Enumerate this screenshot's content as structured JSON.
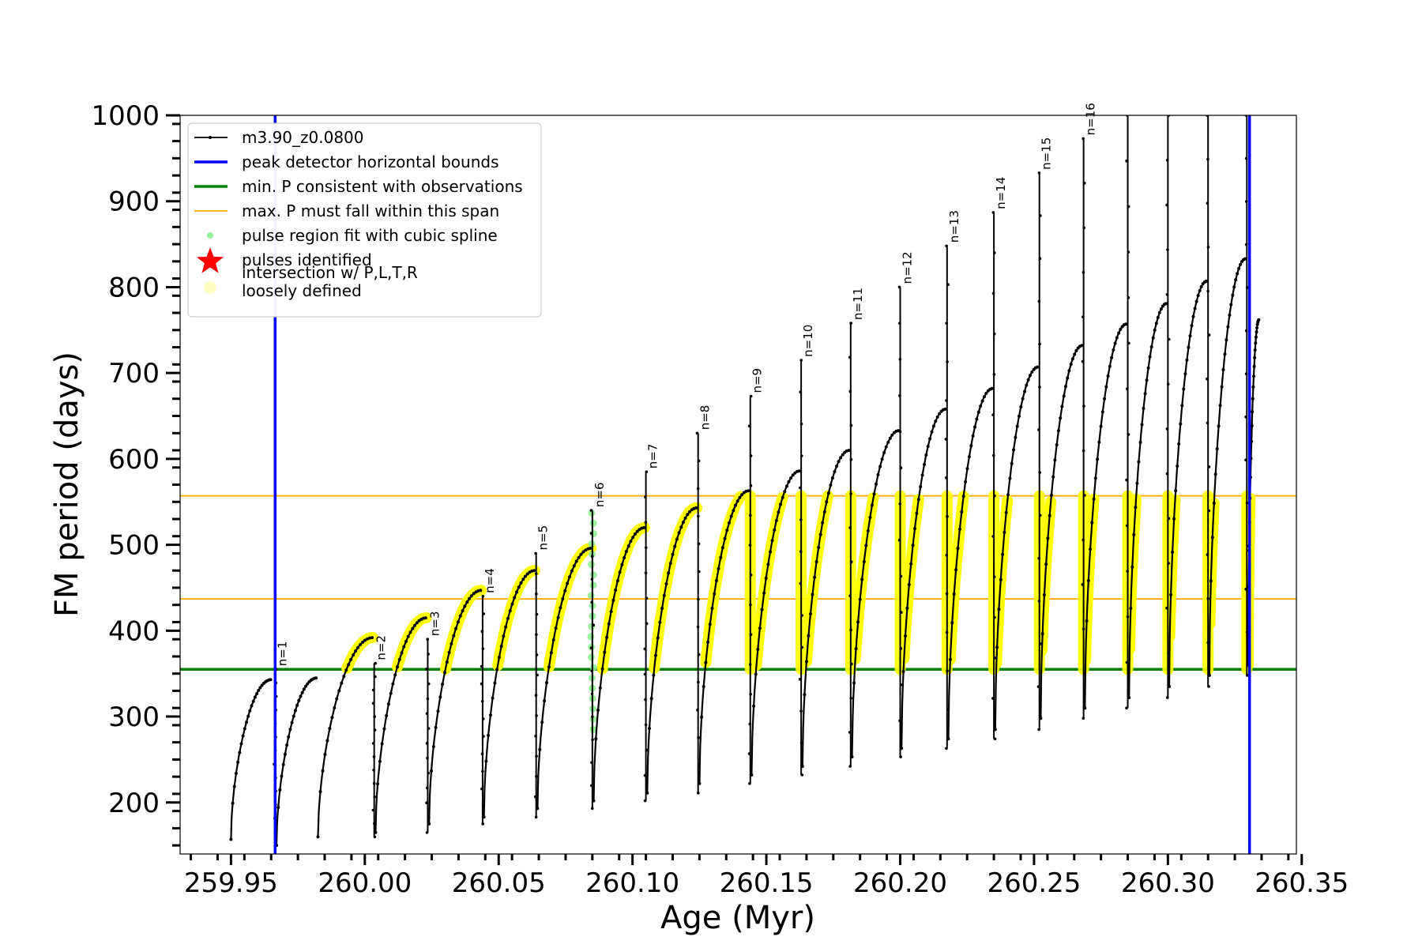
{
  "chart_data": {
    "type": "line",
    "xlabel": "Age (Myr)",
    "ylabel": "FM period (days)",
    "xlim": [
      259.931,
      260.348
    ],
    "ylim": [
      140,
      1000
    ],
    "xticks": [
      "259.95",
      "260.00",
      "260.05",
      "260.10",
      "260.15",
      "260.20",
      "260.25",
      "260.30",
      "260.35"
    ],
    "yticks": [
      "200",
      "300",
      "400",
      "500",
      "600",
      "700",
      "800",
      "900",
      "1000"
    ],
    "legend_position": "upper-left",
    "legend": [
      {
        "label": "m3.90_z0.0800",
        "kind": "line-marker",
        "color": "#000000"
      },
      {
        "label": "peak detector horizontal bounds",
        "kind": "line",
        "color": "#0000ff"
      },
      {
        "label": "min. P consistent with observations",
        "kind": "line",
        "color": "#008000"
      },
      {
        "label": "max. P must fall within this span",
        "kind": "line",
        "color": "#ffa500"
      },
      {
        "label": "pulse region fit with cubic spline",
        "kind": "dot",
        "color": "#90ee90"
      },
      {
        "label": "pulses identified",
        "kind": "star",
        "color": "#ff0000"
      },
      {
        "label": "intersection w/ P,L,T,R\nloosely defined",
        "kind": "dot",
        "color": "#ffffc0"
      }
    ],
    "vertical_bounds": [
      259.9665,
      260.3305
    ],
    "min_period": 355,
    "max_period_span": [
      437,
      557
    ],
    "pulses": [
      {
        "label": "n=1",
        "x": 259.9665,
        "peak": 355
      },
      {
        "label": "n=2",
        "x": 260.0035,
        "peak": 362
      },
      {
        "label": "n=3",
        "x": 260.0235,
        "peak": 390
      },
      {
        "label": "n=4",
        "x": 260.044,
        "peak": 440
      },
      {
        "label": "n=5",
        "x": 260.064,
        "peak": 490
      },
      {
        "label": "n=6",
        "x": 260.085,
        "peak": 540
      },
      {
        "label": "n=7",
        "x": 260.105,
        "peak": 585
      },
      {
        "label": "n=8",
        "x": 260.1245,
        "peak": 630
      },
      {
        "label": "n=9",
        "x": 260.144,
        "peak": 673
      },
      {
        "label": "n=10",
        "x": 260.163,
        "peak": 715
      },
      {
        "label": "n=11",
        "x": 260.1815,
        "peak": 758
      },
      {
        "label": "n=12",
        "x": 260.2,
        "peak": 800
      },
      {
        "label": "n=13",
        "x": 260.2175,
        "peak": 848
      },
      {
        "label": "n=14",
        "x": 260.235,
        "peak": 887
      },
      {
        "label": "n=15",
        "x": 260.252,
        "peak": 933
      },
      {
        "label": "n=16",
        "x": 260.2685,
        "peak": 973
      },
      {
        "label": "",
        "x": 260.285,
        "peak": 1000
      },
      {
        "label": "",
        "x": 260.3,
        "peak": 1000
      },
      {
        "label": "",
        "x": 260.315,
        "peak": 1000
      },
      {
        "label": "",
        "x": 260.3295,
        "peak": 1000
      }
    ],
    "series": [
      {
        "name": "m3.90_z0.0800",
        "cycles": [
          {
            "x0": 259.95,
            "x1": 259.965,
            "ymin": 157,
            "ymax": 343
          },
          {
            "x0": 259.967,
            "x1": 259.982,
            "ymin": 150,
            "ymax": 345
          },
          {
            "x0": 259.9825,
            "x1": 260.003,
            "ymin": 160,
            "ymax": 392
          },
          {
            "x0": 260.004,
            "x1": 260.023,
            "ymin": 165,
            "ymax": 415
          },
          {
            "x0": 260.024,
            "x1": 260.0435,
            "ymin": 175,
            "ymax": 447
          },
          {
            "x0": 260.0445,
            "x1": 260.0635,
            "ymin": 183,
            "ymax": 470
          },
          {
            "x0": 260.0645,
            "x1": 260.0845,
            "ymin": 193,
            "ymax": 496
          },
          {
            "x0": 260.0855,
            "x1": 260.1045,
            "ymin": 202,
            "ymax": 520
          },
          {
            "x0": 260.1055,
            "x1": 260.124,
            "ymin": 211,
            "ymax": 543
          },
          {
            "x0": 260.125,
            "x1": 260.1435,
            "ymin": 222,
            "ymax": 563
          },
          {
            "x0": 260.1445,
            "x1": 260.1625,
            "ymin": 232,
            "ymax": 586
          },
          {
            "x0": 260.1635,
            "x1": 260.181,
            "ymin": 242,
            "ymax": 610
          },
          {
            "x0": 260.182,
            "x1": 260.1995,
            "ymin": 253,
            "ymax": 633
          },
          {
            "x0": 260.2005,
            "x1": 260.217,
            "ymin": 263,
            "ymax": 658
          },
          {
            "x0": 260.218,
            "x1": 260.2345,
            "ymin": 274,
            "ymax": 682
          },
          {
            "x0": 260.2355,
            "x1": 260.2515,
            "ymin": 285,
            "ymax": 707
          },
          {
            "x0": 260.2525,
            "x1": 260.268,
            "ymin": 298,
            "ymax": 732
          },
          {
            "x0": 260.269,
            "x1": 260.2845,
            "ymin": 310,
            "ymax": 757
          },
          {
            "x0": 260.2855,
            "x1": 260.2995,
            "ymin": 322,
            "ymax": 781
          },
          {
            "x0": 260.3005,
            "x1": 260.3145,
            "ymin": 335,
            "ymax": 807
          },
          {
            "x0": 260.3155,
            "x1": 260.329,
            "ymin": 348,
            "ymax": 833
          },
          {
            "x0": 260.33,
            "x1": 260.334,
            "ymin": 360,
            "ymax": 762
          }
        ]
      }
    ]
  }
}
